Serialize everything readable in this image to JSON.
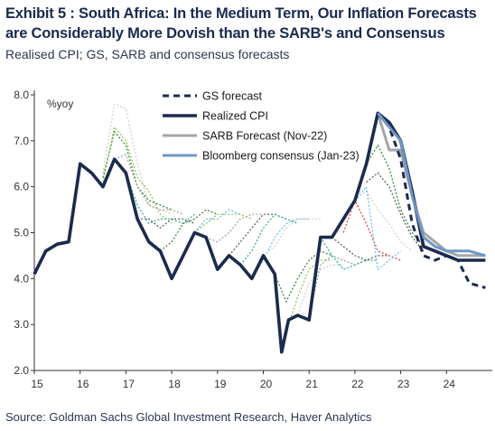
{
  "header": {
    "title": "Exhibit 5 : South Africa: In the Medium Term, Our Inflation Forecasts are Considerably More Dovish than the SARB's and Consensus",
    "subtitle": "Realised CPI; GS, SARB and consensus forecasts"
  },
  "footer": {
    "source": "Source: Goldman Sachs Global Investment Research, Haver Analytics"
  },
  "colors": {
    "realized": "#1b2b4d",
    "gs": "#1b2b4d",
    "sarb": "#a6a6a6",
    "bloomberg": "#6f97c6",
    "historic_green": "#2e7d32",
    "historic_lightgreen": "#8bc34a",
    "historic_gray": "#9e9e9e",
    "historic_darkgray": "#555555",
    "historic_blue": "#64b5f6",
    "historic_teal": "#26a69a",
    "historic_red": "#e53935",
    "historic_lightgray": "#cfcfcf"
  },
  "chart_data": {
    "type": "line",
    "unit_label": "%yoy",
    "ylim": [
      2.0,
      8.0
    ],
    "yticks": [
      "2.0",
      "3.0",
      "4.0",
      "5.0",
      "6.0",
      "7.0",
      "8.0"
    ],
    "xlim": [
      2015.0,
      2024.9
    ],
    "xticks": [
      "15",
      "16",
      "17",
      "18",
      "19",
      "20",
      "21",
      "22",
      "23",
      "24"
    ],
    "legend_position": "top-center",
    "series": [
      {
        "name": "GS forecast",
        "style": "dashed",
        "points": [
          [
            2022.5,
            7.6
          ],
          [
            2022.75,
            7.3
          ],
          [
            2023.0,
            6.6
          ],
          [
            2023.25,
            5.2
          ],
          [
            2023.5,
            4.5
          ],
          [
            2023.75,
            4.4
          ],
          [
            2024.0,
            4.5
          ],
          [
            2024.25,
            4.4
          ],
          [
            2024.5,
            3.9
          ],
          [
            2024.85,
            3.8
          ]
        ]
      },
      {
        "name": "Realized CPI",
        "style": "solid-thick",
        "points": [
          [
            2015.0,
            4.1
          ],
          [
            2015.25,
            4.6
          ],
          [
            2015.5,
            4.75
          ],
          [
            2015.75,
            4.8
          ],
          [
            2016.0,
            6.5
          ],
          [
            2016.25,
            6.3
          ],
          [
            2016.5,
            6.0
          ],
          [
            2016.75,
            6.6
          ],
          [
            2017.0,
            6.3
          ],
          [
            2017.25,
            5.3
          ],
          [
            2017.5,
            4.8
          ],
          [
            2017.75,
            4.6
          ],
          [
            2018.0,
            4.0
          ],
          [
            2018.25,
            4.5
          ],
          [
            2018.5,
            5.0
          ],
          [
            2018.75,
            4.9
          ],
          [
            2019.0,
            4.2
          ],
          [
            2019.25,
            4.5
          ],
          [
            2019.5,
            4.3
          ],
          [
            2019.75,
            4.0
          ],
          [
            2020.0,
            4.5
          ],
          [
            2020.25,
            4.1
          ],
          [
            2020.4,
            2.4
          ],
          [
            2020.55,
            3.1
          ],
          [
            2020.75,
            3.2
          ],
          [
            2021.0,
            3.1
          ],
          [
            2021.25,
            4.9
          ],
          [
            2021.5,
            4.9
          ],
          [
            2021.75,
            5.3
          ],
          [
            2022.0,
            5.7
          ],
          [
            2022.25,
            6.5
          ],
          [
            2022.5,
            7.6
          ],
          [
            2022.75,
            7.4
          ],
          [
            2023.0,
            7.0
          ],
          [
            2023.25,
            5.9
          ],
          [
            2023.5,
            4.7
          ],
          [
            2023.75,
            4.6
          ],
          [
            2024.0,
            4.5
          ],
          [
            2024.25,
            4.4
          ],
          [
            2024.5,
            4.4
          ],
          [
            2024.85,
            4.4
          ]
        ]
      },
      {
        "name": "SARB Forecast (Nov-22)",
        "style": "solid-gray",
        "points": [
          [
            2022.5,
            7.6
          ],
          [
            2022.75,
            6.8
          ],
          [
            2023.0,
            6.8
          ],
          [
            2023.25,
            5.8
          ],
          [
            2023.5,
            5.0
          ],
          [
            2023.75,
            4.8
          ],
          [
            2024.0,
            4.6
          ],
          [
            2024.25,
            4.5
          ],
          [
            2024.5,
            4.5
          ],
          [
            2024.85,
            4.5
          ]
        ]
      },
      {
        "name": "Bloomberg consensus (Jan-23)",
        "style": "solid-blue",
        "points": [
          [
            2022.5,
            7.6
          ],
          [
            2022.75,
            7.3
          ],
          [
            2023.0,
            7.0
          ],
          [
            2023.25,
            5.8
          ],
          [
            2023.5,
            4.9
          ],
          [
            2023.75,
            4.7
          ],
          [
            2024.0,
            4.6
          ],
          [
            2024.25,
            4.6
          ],
          [
            2024.5,
            4.6
          ],
          [
            2024.85,
            4.5
          ]
        ]
      }
    ],
    "historic_forecasts": [
      {
        "color_key": "historic_lightgray",
        "points": [
          [
            2016.5,
            6.3
          ],
          [
            2016.75,
            7.8
          ],
          [
            2017.0,
            7.7
          ],
          [
            2017.25,
            6.5
          ],
          [
            2017.5,
            5.6
          ],
          [
            2017.75,
            5.5
          ],
          [
            2018.0,
            5.4
          ]
        ]
      },
      {
        "color_key": "historic_green",
        "points": [
          [
            2016.5,
            6.2
          ],
          [
            2016.75,
            7.2
          ],
          [
            2017.0,
            6.9
          ],
          [
            2017.25,
            6.0
          ],
          [
            2017.5,
            5.7
          ],
          [
            2017.75,
            5.6
          ],
          [
            2018.0,
            5.5
          ]
        ]
      },
      {
        "color_key": "historic_lightgreen",
        "points": [
          [
            2016.5,
            6.1
          ],
          [
            2016.75,
            7.3
          ],
          [
            2017.0,
            7.0
          ],
          [
            2017.25,
            6.2
          ],
          [
            2017.5,
            5.9
          ],
          [
            2017.75,
            5.4
          ],
          [
            2018.0,
            5.2
          ]
        ]
      },
      {
        "color_key": "historic_gray",
        "points": [
          [
            2016.75,
            6.6
          ],
          [
            2017.0,
            6.7
          ],
          [
            2017.25,
            6.0
          ],
          [
            2017.5,
            5.6
          ],
          [
            2017.75,
            5.5
          ],
          [
            2018.0,
            5.5
          ],
          [
            2018.25,
            5.4
          ]
        ]
      },
      {
        "color_key": "historic_teal",
        "points": [
          [
            2017.0,
            6.3
          ],
          [
            2017.25,
            5.6
          ],
          [
            2017.5,
            5.2
          ],
          [
            2017.75,
            5.3
          ],
          [
            2018.0,
            5.3
          ],
          [
            2018.25,
            5.2
          ],
          [
            2018.5,
            5.4
          ]
        ]
      },
      {
        "color_key": "historic_darkgray",
        "points": [
          [
            2017.25,
            5.3
          ],
          [
            2017.5,
            5.3
          ],
          [
            2017.75,
            5.1
          ],
          [
            2018.0,
            5.3
          ],
          [
            2018.25,
            5.3
          ],
          [
            2018.5,
            5.2
          ]
        ]
      },
      {
        "color_key": "historic_green",
        "points": [
          [
            2017.75,
            4.6
          ],
          [
            2018.0,
            4.8
          ],
          [
            2018.25,
            5.2
          ],
          [
            2018.5,
            5.3
          ],
          [
            2018.75,
            5.5
          ],
          [
            2019.0,
            5.4
          ]
        ]
      },
      {
        "color_key": "historic_blue",
        "points": [
          [
            2018.25,
            4.5
          ],
          [
            2018.5,
            5.0
          ],
          [
            2018.75,
            5.3
          ],
          [
            2019.0,
            5.3
          ],
          [
            2019.25,
            5.5
          ],
          [
            2019.5,
            5.4
          ]
        ]
      },
      {
        "color_key": "historic_lightgreen",
        "points": [
          [
            2018.5,
            5.0
          ],
          [
            2018.75,
            5.2
          ],
          [
            2019.0,
            5.4
          ],
          [
            2019.25,
            5.4
          ],
          [
            2019.5,
            5.4
          ],
          [
            2019.75,
            5.3
          ]
        ]
      },
      {
        "color_key": "historic_gray",
        "points": [
          [
            2018.75,
            4.9
          ],
          [
            2019.0,
            4.8
          ],
          [
            2019.25,
            5.0
          ],
          [
            2019.5,
            5.3
          ],
          [
            2019.75,
            5.4
          ],
          [
            2020.0,
            5.4
          ]
        ]
      },
      {
        "color_key": "historic_darkgray",
        "points": [
          [
            2019.25,
            4.5
          ],
          [
            2019.5,
            4.8
          ],
          [
            2019.75,
            5.1
          ],
          [
            2020.0,
            5.4
          ],
          [
            2020.25,
            5.4
          ],
          [
            2020.5,
            5.3
          ]
        ]
      },
      {
        "color_key": "historic_teal",
        "points": [
          [
            2019.5,
            4.3
          ],
          [
            2019.75,
            4.6
          ],
          [
            2020.0,
            5.1
          ],
          [
            2020.25,
            5.4
          ],
          [
            2020.5,
            5.3
          ],
          [
            2020.75,
            5.2
          ]
        ]
      },
      {
        "color_key": "historic_blue",
        "points": [
          [
            2019.75,
            4.0
          ],
          [
            2020.0,
            4.4
          ],
          [
            2020.25,
            4.9
          ],
          [
            2020.5,
            5.2
          ],
          [
            2020.75,
            5.3
          ],
          [
            2021.0,
            5.3
          ]
        ]
      },
      {
        "color_key": "historic_lightgray",
        "points": [
          [
            2020.0,
            4.5
          ],
          [
            2020.25,
            4.7
          ],
          [
            2020.5,
            5.1
          ],
          [
            2020.75,
            5.3
          ],
          [
            2021.0,
            5.3
          ],
          [
            2021.25,
            5.3
          ]
        ]
      },
      {
        "color_key": "historic_green",
        "points": [
          [
            2020.25,
            4.1
          ],
          [
            2020.5,
            3.5
          ],
          [
            2020.75,
            4.0
          ],
          [
            2021.0,
            4.4
          ],
          [
            2021.25,
            4.6
          ],
          [
            2021.5,
            4.5
          ]
        ]
      },
      {
        "color_key": "historic_lightgreen",
        "points": [
          [
            2020.4,
            2.5
          ],
          [
            2020.55,
            3.0
          ],
          [
            2020.75,
            3.6
          ],
          [
            2021.0,
            4.2
          ],
          [
            2021.25,
            4.4
          ],
          [
            2021.5,
            4.4
          ]
        ]
      },
      {
        "color_key": "historic_lightgray",
        "points": [
          [
            2020.55,
            3.1
          ],
          [
            2020.75,
            3.2
          ],
          [
            2021.0,
            3.9
          ],
          [
            2021.25,
            4.2
          ],
          [
            2021.5,
            4.3
          ],
          [
            2021.75,
            4.3
          ]
        ]
      },
      {
        "color_key": "historic_gray",
        "points": [
          [
            2021.0,
            3.2
          ],
          [
            2021.25,
            4.3
          ],
          [
            2021.5,
            4.5
          ],
          [
            2021.75,
            4.4
          ],
          [
            2022.0,
            4.3
          ],
          [
            2022.25,
            4.4
          ]
        ]
      },
      {
        "color_key": "historic_teal",
        "points": [
          [
            2021.25,
            4.9
          ],
          [
            2021.5,
            4.5
          ],
          [
            2021.75,
            4.2
          ],
          [
            2022.0,
            4.3
          ],
          [
            2022.25,
            4.4
          ],
          [
            2022.5,
            4.4
          ]
        ]
      },
      {
        "color_key": "historic_darkgray",
        "points": [
          [
            2021.5,
            4.9
          ],
          [
            2021.75,
            4.7
          ],
          [
            2022.0,
            4.5
          ],
          [
            2022.25,
            4.4
          ],
          [
            2022.5,
            4.5
          ],
          [
            2022.75,
            4.5
          ]
        ]
      },
      {
        "color_key": "historic_red",
        "points": [
          [
            2021.75,
            5.0
          ],
          [
            2022.0,
            5.7
          ],
          [
            2022.25,
            5.2
          ],
          [
            2022.5,
            4.6
          ],
          [
            2022.75,
            4.5
          ],
          [
            2023.0,
            4.4
          ]
        ]
      },
      {
        "color_key": "historic_lightgray",
        "points": [
          [
            2022.0,
            5.7
          ],
          [
            2022.25,
            5.9
          ],
          [
            2022.5,
            5.5
          ],
          [
            2022.75,
            5.2
          ],
          [
            2023.0,
            4.8
          ],
          [
            2023.25,
            4.6
          ]
        ]
      },
      {
        "color_key": "historic_darkgray",
        "points": [
          [
            2022.25,
            6.1
          ],
          [
            2022.5,
            6.3
          ],
          [
            2022.75,
            6.0
          ],
          [
            2023.0,
            5.4
          ],
          [
            2023.25,
            4.9
          ],
          [
            2023.5,
            4.6
          ]
        ]
      },
      {
        "color_key": "historic_green",
        "points": [
          [
            2022.25,
            6.5
          ],
          [
            2022.5,
            6.9
          ],
          [
            2022.75,
            6.4
          ],
          [
            2023.0,
            5.5
          ],
          [
            2023.25,
            5.0
          ],
          [
            2023.5,
            4.7
          ]
        ]
      },
      {
        "color_key": "historic_blue",
        "points": [
          [
            2022.0,
            5.7
          ],
          [
            2022.25,
            6.0
          ],
          [
            2022.5,
            4.2
          ],
          [
            2022.75,
            4.4
          ],
          [
            2023.0,
            4.6
          ]
        ]
      }
    ]
  }
}
